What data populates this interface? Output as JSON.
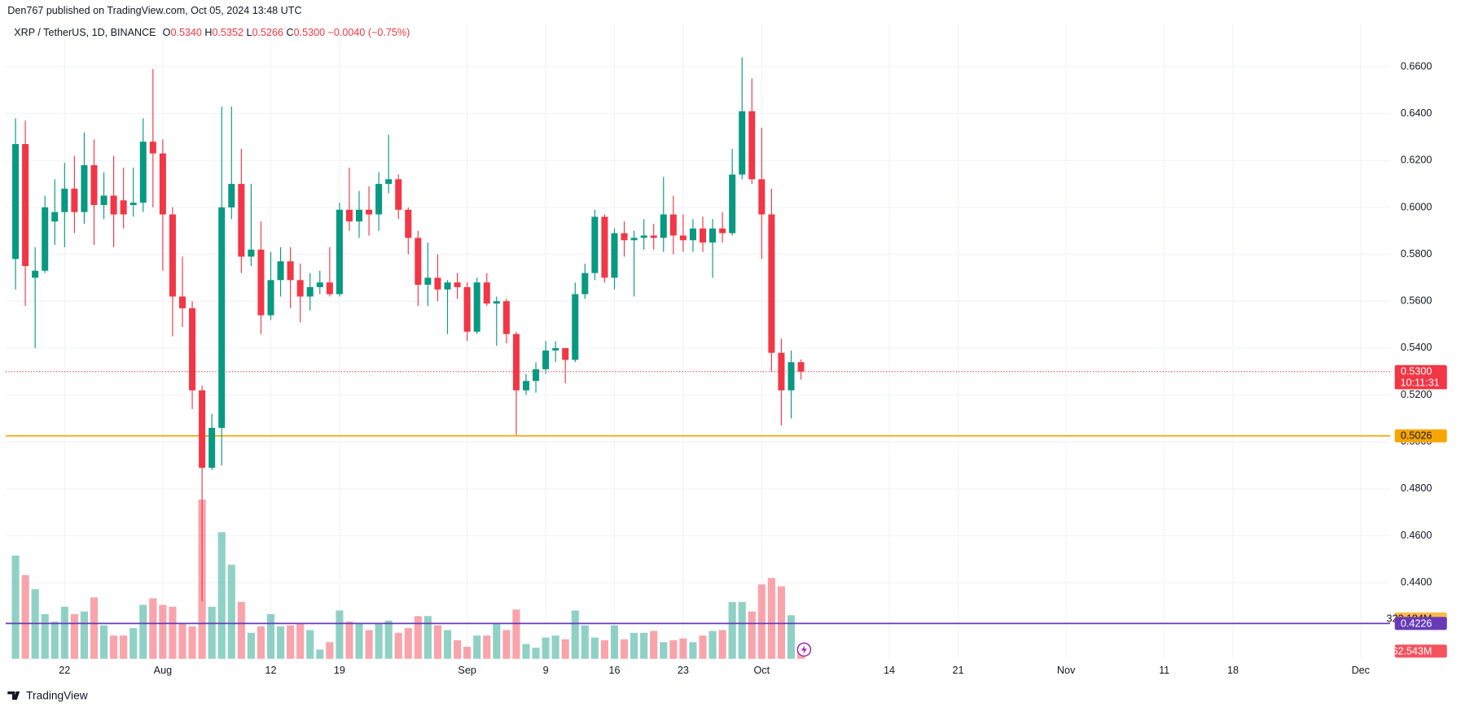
{
  "header": "Den767 published on TradingView.com, Oct 05, 2024 13:48 UTC",
  "footer": "TradingView",
  "chart_data": {
    "type": "candlestick",
    "legend": {
      "symbol": "XRP / TetherUS, 1D, BINANCE",
      "items": [
        {
          "key": "O",
          "value": "0.5340"
        },
        {
          "key": "H",
          "value": "0.5352"
        },
        {
          "key": "L",
          "value": "0.5266"
        },
        {
          "key": "C",
          "value": "0.5300"
        }
      ],
      "change": "−0.0040 (−0.75%)"
    },
    "colors": {
      "up": "#089981",
      "down": "#f23645"
    },
    "x": [
      "07-17",
      "07-18",
      "07-19",
      "07-20",
      "07-21",
      "07-22",
      "07-23",
      "07-24",
      "07-25",
      "07-26",
      "07-27",
      "07-28",
      "07-29",
      "07-30",
      "07-31",
      "08-01",
      "08-02",
      "08-03",
      "08-04",
      "08-05",
      "08-06",
      "08-07",
      "08-08",
      "08-09",
      "08-10",
      "08-11",
      "08-12",
      "08-13",
      "08-14",
      "08-15",
      "08-16",
      "08-17",
      "08-18",
      "08-19",
      "08-20",
      "08-21",
      "08-22",
      "08-23",
      "08-24",
      "08-25",
      "08-26",
      "08-27",
      "08-28",
      "08-29",
      "08-30",
      "08-31",
      "09-01",
      "09-02",
      "09-03",
      "09-04",
      "09-05",
      "09-06",
      "09-07",
      "09-08",
      "09-09",
      "09-10",
      "09-11",
      "09-12",
      "09-13",
      "09-14",
      "09-15",
      "09-16",
      "09-17",
      "09-18",
      "09-19",
      "09-20",
      "09-21",
      "09-22",
      "09-23",
      "09-24",
      "09-25",
      "09-26",
      "09-27",
      "09-28",
      "09-29",
      "09-30",
      "10-01",
      "10-02",
      "10-03",
      "10-04",
      "10-05"
    ],
    "open": [
      0.578,
      0.627,
      0.57,
      0.573,
      0.594,
      0.598,
      0.608,
      0.598,
      0.618,
      0.601,
      0.605,
      0.603,
      0.601,
      0.602,
      0.628,
      0.623,
      0.597,
      0.562,
      0.557,
      0.522,
      0.489,
      0.506,
      0.6,
      0.61,
      0.579,
      0.582,
      0.554,
      0.569,
      0.577,
      0.569,
      0.562,
      0.566,
      0.568,
      0.563,
      0.599,
      0.594,
      0.599,
      0.597,
      0.61,
      0.612,
      0.599,
      0.587,
      0.567,
      0.57,
      0.565,
      0.568,
      0.566,
      0.547,
      0.568,
      0.559,
      0.56,
      0.546,
      0.522,
      0.526,
      0.531,
      0.539,
      0.54,
      0.535,
      0.563,
      0.572,
      0.596,
      0.57,
      0.589,
      0.586,
      0.587,
      0.588,
      0.587,
      0.597,
      0.588,
      0.586,
      0.591,
      0.585,
      0.591,
      0.589,
      0.614,
      0.641,
      0.612,
      0.597,
      0.538,
      0.522,
      0.534
    ],
    "high": [
      0.638,
      0.637,
      0.583,
      0.605,
      0.612,
      0.619,
      0.622,
      0.632,
      0.629,
      0.615,
      0.622,
      0.617,
      0.617,
      0.638,
      0.659,
      0.629,
      0.6,
      0.579,
      0.56,
      0.524,
      0.512,
      0.643,
      0.643,
      0.625,
      0.61,
      0.594,
      0.581,
      0.583,
      0.583,
      0.576,
      0.572,
      0.573,
      0.583,
      0.602,
      0.617,
      0.607,
      0.609,
      0.615,
      0.631,
      0.614,
      0.6,
      0.59,
      0.585,
      0.58,
      0.569,
      0.572,
      0.568,
      0.57,
      0.572,
      0.562,
      0.561,
      0.547,
      0.529,
      0.534,
      0.543,
      0.543,
      0.54,
      0.568,
      0.576,
      0.599,
      0.597,
      0.591,
      0.594,
      0.59,
      0.595,
      0.593,
      0.613,
      0.605,
      0.597,
      0.595,
      0.596,
      0.595,
      0.598,
      0.625,
      0.664,
      0.655,
      0.634,
      0.608,
      0.544,
      0.539,
      0.5352
    ],
    "low": [
      0.565,
      0.558,
      0.54,
      0.572,
      0.584,
      0.583,
      0.589,
      0.593,
      0.584,
      0.595,
      0.583,
      0.591,
      0.596,
      0.598,
      0.6,
      0.573,
      0.545,
      0.549,
      0.514,
      0.432,
      0.488,
      0.49,
      0.595,
      0.572,
      0.575,
      0.546,
      0.552,
      0.562,
      0.557,
      0.551,
      0.556,
      0.563,
      0.562,
      0.562,
      0.59,
      0.587,
      0.588,
      0.59,
      0.606,
      0.595,
      0.58,
      0.558,
      0.558,
      0.56,
      0.546,
      0.561,
      0.543,
      0.546,
      0.558,
      0.541,
      0.542,
      0.503,
      0.52,
      0.521,
      0.529,
      0.534,
      0.525,
      0.534,
      0.561,
      0.569,
      0.568,
      0.565,
      0.579,
      0.562,
      0.582,
      0.582,
      0.581,
      0.58,
      0.581,
      0.581,
      0.581,
      0.57,
      0.585,
      0.588,
      0.612,
      0.61,
      0.578,
      0.53,
      0.507,
      0.51,
      0.5266
    ],
    "close": [
      0.627,
      0.575,
      0.573,
      0.6,
      0.598,
      0.608,
      0.598,
      0.618,
      0.601,
      0.605,
      0.597,
      0.597,
      0.602,
      0.628,
      0.623,
      0.597,
      0.562,
      0.557,
      0.522,
      0.489,
      0.506,
      0.6,
      0.61,
      0.579,
      0.582,
      0.554,
      0.569,
      0.577,
      0.569,
      0.562,
      0.566,
      0.568,
      0.563,
      0.599,
      0.594,
      0.599,
      0.597,
      0.61,
      0.612,
      0.599,
      0.587,
      0.567,
      0.57,
      0.565,
      0.568,
      0.566,
      0.547,
      0.568,
      0.559,
      0.56,
      0.546,
      0.522,
      0.526,
      0.531,
      0.539,
      0.54,
      0.535,
      0.563,
      0.572,
      0.596,
      0.57,
      0.589,
      0.586,
      0.587,
      0.588,
      0.587,
      0.597,
      0.588,
      0.586,
      0.591,
      0.585,
      0.591,
      0.589,
      0.614,
      0.641,
      0.612,
      0.597,
      0.538,
      0.522,
      0.534,
      0.53
    ],
    "volume": {
      "axis": "y2",
      "values": [
        832,
        675,
        562,
        360,
        300,
        420,
        360,
        382,
        495,
        270,
        188,
        188,
        248,
        435,
        488,
        435,
        420,
        285,
        262,
        1282,
        420,
        1020,
        758,
        458,
        210,
        262,
        360,
        262,
        270,
        285,
        232,
        75,
        135,
        390,
        300,
        285,
        232,
        285,
        308,
        210,
        248,
        345,
        345,
        270,
        232,
        150,
        98,
        188,
        188,
        285,
        232,
        398,
        120,
        90,
        172,
        188,
        158,
        390,
        270,
        172,
        150,
        270,
        158,
        210,
        210,
        225,
        135,
        150,
        165,
        135,
        188,
        225,
        232,
        458,
        458,
        382,
        600,
        652,
        585,
        352,
        62.543
      ]
    },
    "xlim": [
      "07-16",
      "12-04"
    ],
    "xticks": [
      {
        "value": "07-22",
        "label": "22"
      },
      {
        "value": "08-01",
        "label": "Aug"
      },
      {
        "value": "08-12",
        "label": "12"
      },
      {
        "value": "08-19",
        "label": "19"
      },
      {
        "value": "09-01",
        "label": "Sep"
      },
      {
        "value": "09-09",
        "label": "9"
      },
      {
        "value": "09-16",
        "label": "16"
      },
      {
        "value": "09-23",
        "label": "23"
      },
      {
        "value": "10-01",
        "label": "Oct"
      },
      {
        "value": "10-14",
        "label": "14"
      },
      {
        "value": "10-21",
        "label": "21"
      },
      {
        "value": "11-01",
        "label": "Nov"
      },
      {
        "value": "11-11",
        "label": "11"
      },
      {
        "value": "11-18",
        "label": "18"
      },
      {
        "value": "12-01",
        "label": "Dec"
      }
    ],
    "ylim": [
      0.4075,
      0.6785
    ],
    "yticks": [
      {
        "value": 0.44,
        "label": "0.4400"
      },
      {
        "value": 0.46,
        "label": "0.4600"
      },
      {
        "value": 0.48,
        "label": "0.4800"
      },
      {
        "value": 0.5,
        "label": "0.5000"
      },
      {
        "value": 0.52,
        "label": "0.5200"
      },
      {
        "value": 0.54,
        "label": "0.5400"
      },
      {
        "value": 0.56,
        "label": "0.5600"
      },
      {
        "value": 0.58,
        "label": "0.5800"
      },
      {
        "value": 0.6,
        "label": "0.6000"
      },
      {
        "value": 0.62,
        "label": "0.6200"
      },
      {
        "value": 0.64,
        "label": "0.6400"
      },
      {
        "value": 0.66,
        "label": "0.6600"
      }
    ],
    "y2lim": [
      0,
      5120
    ],
    "grid": true,
    "price_lines": [
      {
        "value": 0.5026,
        "label": "0.5026",
        "color": "#f7a600"
      },
      {
        "value": 0.4226,
        "label": "0.4226",
        "color": "#673ab7"
      }
    ],
    "last_price": {
      "value": 0.53,
      "label": "0.5300",
      "countdown": "10:11:31",
      "color": "#f23645"
    },
    "volume_ma": {
      "value": 322.184,
      "label": "322.184M",
      "color": "#ffb74d"
    },
    "last_volume": {
      "value": 62.543,
      "label": "62.543M",
      "color": "#f7525f"
    }
  }
}
